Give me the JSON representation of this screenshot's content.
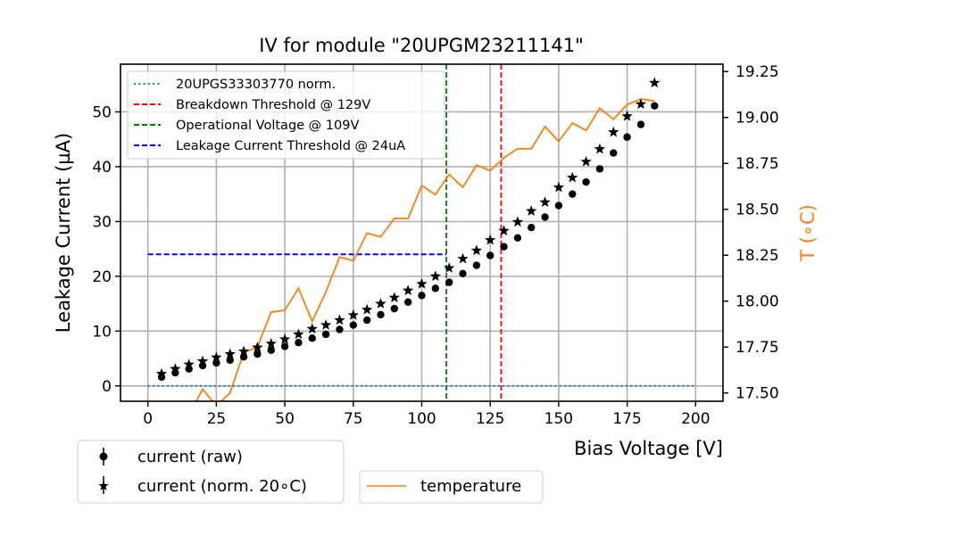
{
  "chart_data": {
    "type": "scatter",
    "title": "IV for module \"20UPGM23211141\"",
    "xlabel": "Bias Voltage [V]",
    "ylabel": "Leakage Current (µA)",
    "y2label": "T (∘C)",
    "xlim": [
      -10,
      210
    ],
    "ylim": [
      -2.8,
      58.7
    ],
    "y2lim": [
      17.455,
      19.29
    ],
    "grid": true,
    "x_ticks": [
      0,
      25,
      50,
      75,
      100,
      125,
      150,
      175,
      200
    ],
    "x_tick_labels": [
      "0",
      "25",
      "50",
      "75",
      "100",
      "125",
      "150",
      "175",
      "200"
    ],
    "y_ticks": [
      0,
      10,
      20,
      30,
      40,
      50
    ],
    "y_tick_labels": [
      "0",
      "10",
      "20",
      "30",
      "40",
      "50"
    ],
    "y2_ticks": [
      17.5,
      17.75,
      18.0,
      18.25,
      18.5,
      18.75,
      19.0,
      19.25
    ],
    "y2_tick_labels": [
      "17.50",
      "17.75",
      "18.00",
      "18.25",
      "18.50",
      "18.75",
      "19.00",
      "19.25"
    ],
    "x": [
      5,
      10,
      15,
      20,
      25,
      30,
      35,
      40,
      45,
      50,
      55,
      60,
      65,
      70,
      75,
      80,
      85,
      90,
      95,
      100,
      105,
      110,
      115,
      120,
      125,
      130,
      135,
      140,
      145,
      150,
      155,
      160,
      165,
      170,
      175,
      180,
      185
    ],
    "series": [
      {
        "name": "current (raw)",
        "marker": "circle",
        "color": "#000000",
        "axis": "left",
        "values": [
          1.6,
          2.4,
          3.1,
          3.7,
          4.2,
          4.7,
          5.3,
          5.8,
          6.5,
          7.2,
          7.9,
          8.7,
          9.4,
          10.3,
          11.1,
          12.0,
          13.0,
          14.1,
          15.3,
          16.5,
          17.8,
          18.9,
          20.5,
          22.0,
          23.8,
          25.4,
          27.0,
          28.9,
          30.8,
          32.9,
          35.0,
          37.2,
          39.6,
          42.5,
          45.4,
          47.7,
          51.1
        ]
      },
      {
        "name": "current (norm. 20∘C)",
        "marker": "star",
        "color": "#000000",
        "axis": "left",
        "values": [
          2.2,
          3.1,
          3.9,
          4.5,
          5.2,
          5.8,
          6.3,
          7.0,
          7.7,
          8.5,
          9.4,
          10.4,
          11.1,
          12.0,
          12.9,
          13.9,
          15.0,
          16.1,
          17.4,
          18.6,
          20.0,
          21.5,
          23.2,
          24.7,
          26.6,
          28.3,
          29.9,
          31.9,
          33.5,
          36.2,
          38.0,
          40.9,
          43.2,
          46.3,
          49.2,
          51.4,
          55.3
        ]
      },
      {
        "name": "temperature",
        "marker": "line",
        "color": "#ff7f0e",
        "axis": "right",
        "values": [
          17.2,
          17.3,
          17.38,
          17.52,
          17.43,
          17.5,
          17.72,
          17.75,
          17.94,
          17.95,
          18.07,
          17.89,
          18.05,
          18.24,
          18.22,
          18.37,
          18.35,
          18.45,
          18.45,
          18.63,
          18.58,
          18.69,
          18.62,
          18.74,
          18.71,
          18.78,
          18.83,
          18.83,
          18.95,
          18.87,
          18.97,
          18.93,
          19.05,
          18.99,
          19.07,
          19.1,
          19.09
        ]
      }
    ],
    "reference_lines": [
      {
        "name": "20UPGS33303770 norm.",
        "orientation": "horizontal",
        "value": 0,
        "x_range": [
          0,
          200
        ],
        "color": "#1f77b4",
        "style": "dotted"
      },
      {
        "name": "Breakdown Threshold @ 129V",
        "orientation": "vertical",
        "value": 129,
        "color": "#ff0000",
        "style": "dashed"
      },
      {
        "name": "Operational Voltage @ 109V",
        "orientation": "vertical",
        "value": 109,
        "color": "#008000",
        "style": "dashed"
      },
      {
        "name": "Leakage Current Threshold @ 24uA",
        "orientation": "horizontal",
        "value": 24,
        "x_range": [
          0,
          109
        ],
        "color": "#0000ff",
        "style": "dashed"
      }
    ],
    "legends": [
      {
        "placement": "top-left",
        "entries": [
          "20UPGS33303770 norm.",
          "Breakdown Threshold @ 129V",
          "Operational Voltage @ 109V",
          "Leakage Current Threshold @ 24uA"
        ]
      },
      {
        "placement": "below-left",
        "entries": [
          "current (raw)",
          "current (norm. 20∘C)"
        ]
      },
      {
        "placement": "below-center",
        "entries": [
          "temperature"
        ]
      }
    ]
  }
}
